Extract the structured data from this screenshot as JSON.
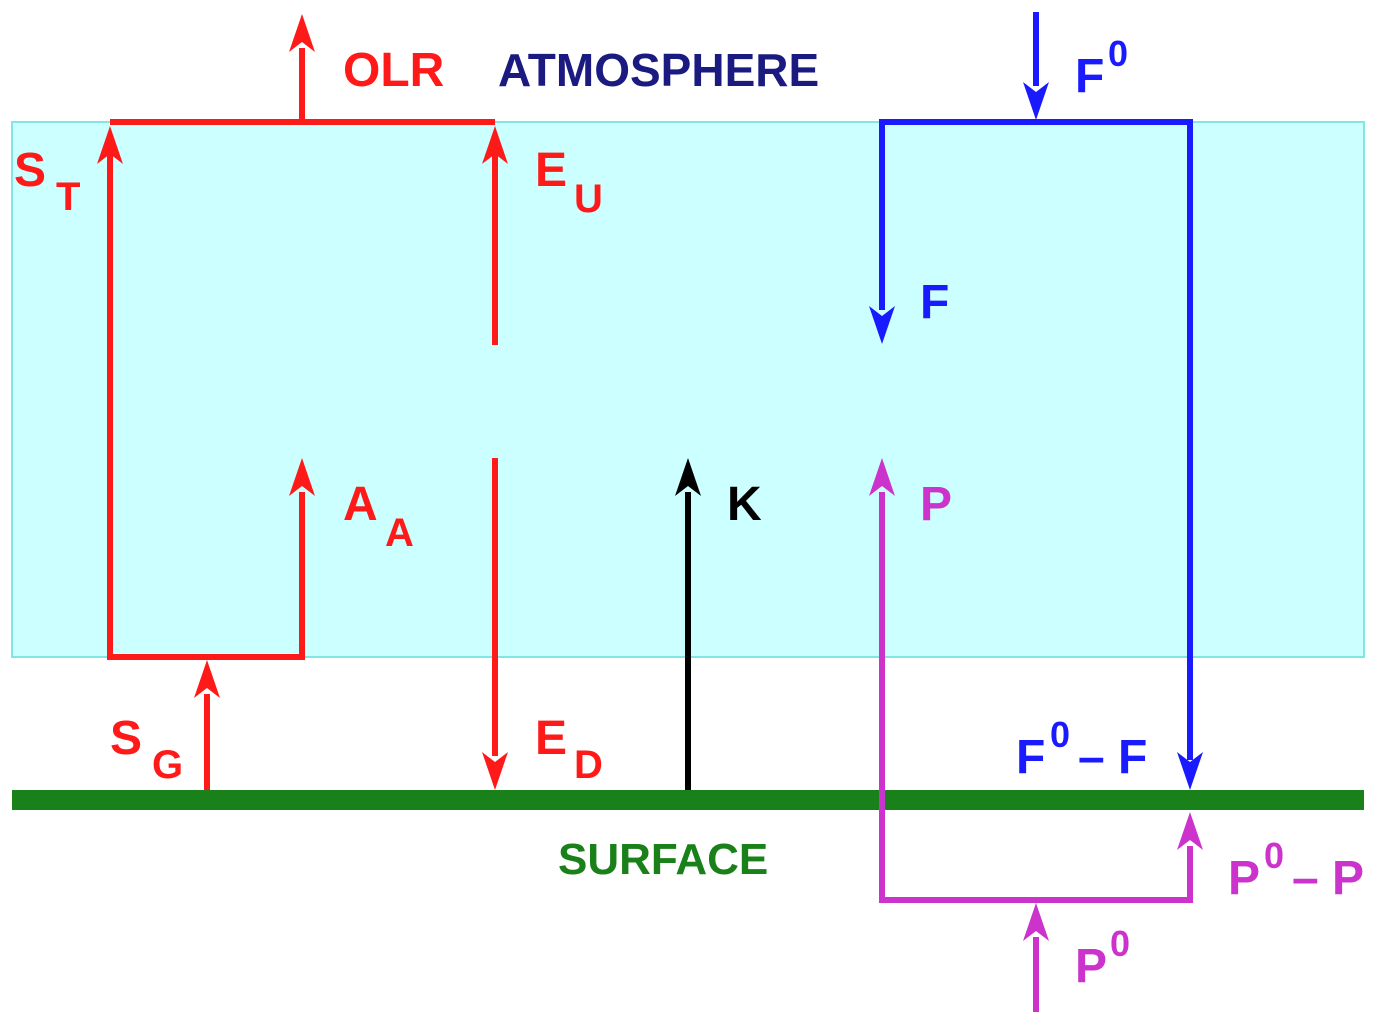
{
  "colors": {
    "red": "#ff1a1a",
    "blue": "#1a1aff",
    "magenta": "#cc33cc",
    "black": "#000000",
    "navy": "#1a1a80",
    "green": "#1a801a",
    "atmosphere_fill": "#ccffff",
    "atmosphere_border": "#80e6e6",
    "surface": "#1a801a"
  },
  "labels": {
    "olr": "OLR",
    "atmosphere": "ATMOSPHERE",
    "surface": "SURFACE",
    "s_t": {
      "main": "S",
      "sub": "T"
    },
    "e_u": {
      "main": "E",
      "sub": "U"
    },
    "a_a": {
      "main": "A",
      "sub": "A"
    },
    "s_g": {
      "main": "S",
      "sub": "G"
    },
    "e_d": {
      "main": "E",
      "sub": "D"
    },
    "k": "K",
    "f0_top": {
      "main": "F",
      "sup": "0"
    },
    "f": "F",
    "p": "P",
    "f0_minus_f": {
      "main": "F",
      "sup": "0",
      "rest": "– F"
    },
    "p0_minus_p": {
      "main": "P",
      "sup": "0",
      "rest": "– P"
    },
    "p0_bottom": {
      "main": "P",
      "sup": "0"
    }
  },
  "icons": {
    "arrows": [
      "olr-arrow",
      "s-t-arrow",
      "e-u-arrow",
      "a-a-arrow",
      "s-g-arrow",
      "e-d-arrow",
      "k-arrow",
      "f0-arrow",
      "f-arrow",
      "f0-minus-f-arrow",
      "p-arrow",
      "p0-arrow",
      "p0-minus-p-arrow"
    ]
  }
}
